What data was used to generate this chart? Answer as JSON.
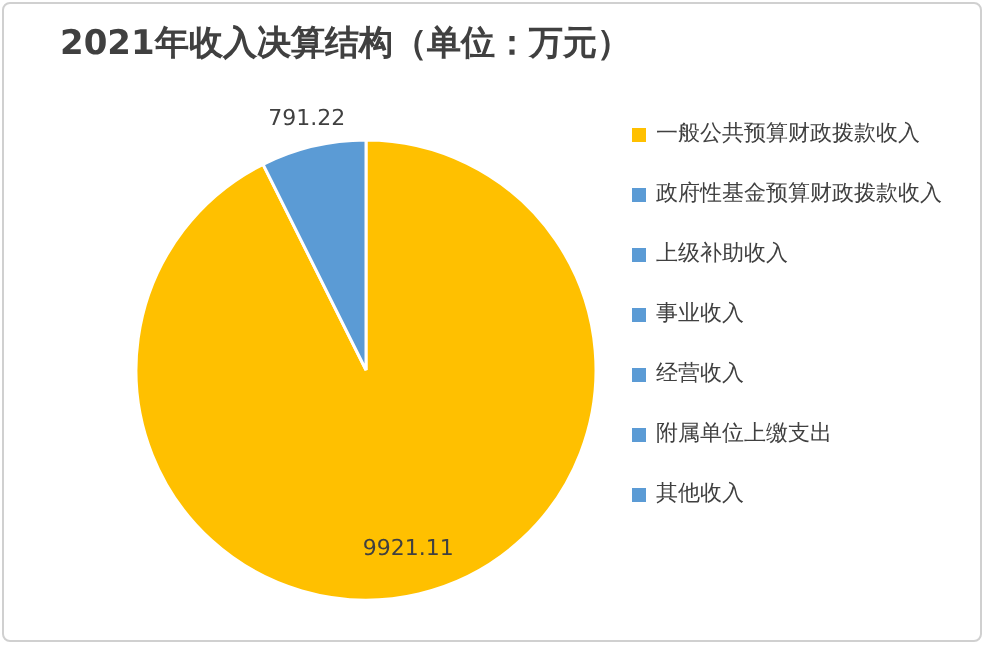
{
  "chart_data": {
    "type": "pie",
    "title": "2021年收入决算结构（单位：万元）",
    "categories": [
      "一般公共预算财政拨款收入",
      "政府性基金预算财政拨款收入",
      "上级补助收入",
      "事业收入",
      "经营收入",
      "附属单位上缴支出",
      "其他收入"
    ],
    "values": [
      9921.11,
      791.22,
      0,
      0,
      0,
      0,
      0
    ],
    "colors": [
      "#ffc000",
      "#5b9bd5",
      "#5b9bd5",
      "#5b9bd5",
      "#5b9bd5",
      "#5b9bd5",
      "#5b9bd5"
    ],
    "data_labels": true,
    "legend": "right"
  }
}
